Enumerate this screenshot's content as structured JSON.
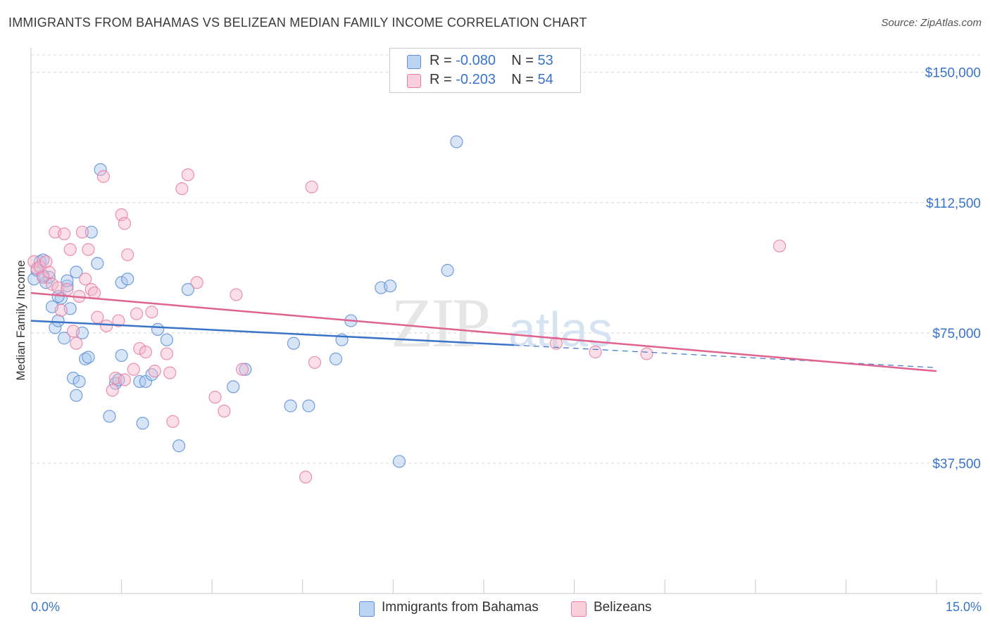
{
  "title": "IMMIGRANTS FROM BAHAMAS VS BELIZEAN MEDIAN FAMILY INCOME CORRELATION CHART",
  "source": "Source: ZipAtlas.com",
  "watermark": {
    "zip": "ZIP",
    "atlas": "atlas"
  },
  "legend_top": [
    {
      "r_label": "R =",
      "r_value": "-0.080",
      "n_label": "N =",
      "n_value": "53"
    },
    {
      "r_label": "R =",
      "r_value": "-0.203",
      "n_label": "N =",
      "n_value": "54"
    }
  ],
  "colors": {
    "blue_fill": "#a9c6ee",
    "blue_stroke": "#5b8fd6",
    "blue_line": "#3a74c9",
    "pink_fill": "#f4b9cd",
    "pink_stroke": "#e67fa3",
    "pink_line": "#e0628f",
    "grid": "#d8d8d8",
    "tick_label": "#3a74c9"
  },
  "chart_data": {
    "type": "scatter",
    "title": "IMMIGRANTS FROM BAHAMAS VS BELIZEAN MEDIAN FAMILY INCOME CORRELATION CHART",
    "xlabel": "",
    "ylabel": "Median Family Income",
    "xlim": [
      0,
      15
    ],
    "ylim": [
      0,
      155000
    ],
    "x_tick_labels": [
      "0.0%",
      "15.0%"
    ],
    "y_ticks": [
      37500,
      75000,
      112500,
      150000
    ],
    "y_tick_labels": [
      "$37,500",
      "$75,000",
      "$112,500",
      "$150,000"
    ],
    "grid": true,
    "legend_position": "bottom",
    "series": [
      {
        "name": "Immigrants from Bahamas",
        "color": "#5b8fd6",
        "trend": {
          "x": [
            0,
            8
          ],
          "y": [
            78500,
            71500
          ],
          "dashed_extension_to": [
            15,
            65000
          ]
        },
        "points": [
          [
            0.05,
            90500
          ],
          [
            0.1,
            93000
          ],
          [
            0.15,
            95500
          ],
          [
            0.2,
            96000
          ],
          [
            0.25,
            89500
          ],
          [
            0.3,
            91000
          ],
          [
            0.35,
            82500
          ],
          [
            0.4,
            76500
          ],
          [
            0.45,
            78500
          ],
          [
            0.5,
            85000
          ],
          [
            0.55,
            73500
          ],
          [
            0.6,
            88500
          ],
          [
            0.65,
            82000
          ],
          [
            0.7,
            62000
          ],
          [
            0.75,
            57000
          ],
          [
            0.8,
            61000
          ],
          [
            0.85,
            75000
          ],
          [
            0.9,
            67500
          ],
          [
            0.95,
            68000
          ],
          [
            1.0,
            104000
          ],
          [
            1.1,
            95000
          ],
          [
            1.15,
            122000
          ],
          [
            1.3,
            51000
          ],
          [
            1.4,
            60500
          ],
          [
            1.45,
            61500
          ],
          [
            1.5,
            68500
          ],
          [
            1.5,
            89500
          ],
          [
            1.6,
            90500
          ],
          [
            1.8,
            61000
          ],
          [
            1.85,
            49000
          ],
          [
            1.9,
            61000
          ],
          [
            2.0,
            63000
          ],
          [
            2.1,
            76000
          ],
          [
            2.25,
            73000
          ],
          [
            2.45,
            42500
          ],
          [
            2.6,
            87500
          ],
          [
            3.35,
            59500
          ],
          [
            3.55,
            64500
          ],
          [
            4.3,
            54000
          ],
          [
            4.35,
            72000
          ],
          [
            4.6,
            54000
          ],
          [
            5.05,
            67500
          ],
          [
            5.15,
            73000
          ],
          [
            5.3,
            78500
          ],
          [
            5.8,
            88000
          ],
          [
            5.95,
            88500
          ],
          [
            6.1,
            38000
          ],
          [
            7.05,
            130000
          ],
          [
            6.9,
            93000
          ],
          [
            0.75,
            92500
          ],
          [
            0.6,
            90000
          ],
          [
            0.2,
            91500
          ],
          [
            0.45,
            85500
          ]
        ]
      },
      {
        "name": "Belizeans",
        "color": "#e67fa3",
        "trend": {
          "x": [
            0,
            15
          ],
          "y": [
            86500,
            64000
          ]
        },
        "points": [
          [
            0.05,
            95500
          ],
          [
            0.1,
            93500
          ],
          [
            0.15,
            94000
          ],
          [
            0.2,
            91000
          ],
          [
            0.3,
            92500
          ],
          [
            0.35,
            89000
          ],
          [
            0.4,
            104000
          ],
          [
            0.45,
            88000
          ],
          [
            0.5,
            81500
          ],
          [
            0.55,
            103500
          ],
          [
            0.6,
            87500
          ],
          [
            0.65,
            99000
          ],
          [
            0.7,
            75500
          ],
          [
            0.75,
            72000
          ],
          [
            0.8,
            85500
          ],
          [
            0.85,
            104000
          ],
          [
            0.9,
            90500
          ],
          [
            0.95,
            99000
          ],
          [
            1.0,
            87500
          ],
          [
            1.05,
            86500
          ],
          [
            1.1,
            79500
          ],
          [
            1.2,
            120000
          ],
          [
            1.25,
            77000
          ],
          [
            1.35,
            58500
          ],
          [
            1.4,
            62000
          ],
          [
            1.45,
            78500
          ],
          [
            1.5,
            109000
          ],
          [
            1.55,
            106500
          ],
          [
            1.6,
            97500
          ],
          [
            1.7,
            64500
          ],
          [
            1.75,
            80500
          ],
          [
            1.8,
            70500
          ],
          [
            1.9,
            69500
          ],
          [
            2.0,
            81000
          ],
          [
            2.05,
            64000
          ],
          [
            2.25,
            69000
          ],
          [
            2.3,
            63500
          ],
          [
            2.35,
            49500
          ],
          [
            2.5,
            116500
          ],
          [
            2.6,
            120500
          ],
          [
            2.75,
            89500
          ],
          [
            3.05,
            56500
          ],
          [
            3.2,
            52500
          ],
          [
            3.4,
            86000
          ],
          [
            3.5,
            64500
          ],
          [
            4.65,
            117000
          ],
          [
            4.7,
            66500
          ],
          [
            4.55,
            33500
          ],
          [
            8.7,
            72000
          ],
          [
            9.35,
            69500
          ],
          [
            10.2,
            69000
          ],
          [
            12.4,
            100000
          ],
          [
            0.25,
            95500
          ],
          [
            1.55,
            61500
          ]
        ]
      }
    ]
  }
}
